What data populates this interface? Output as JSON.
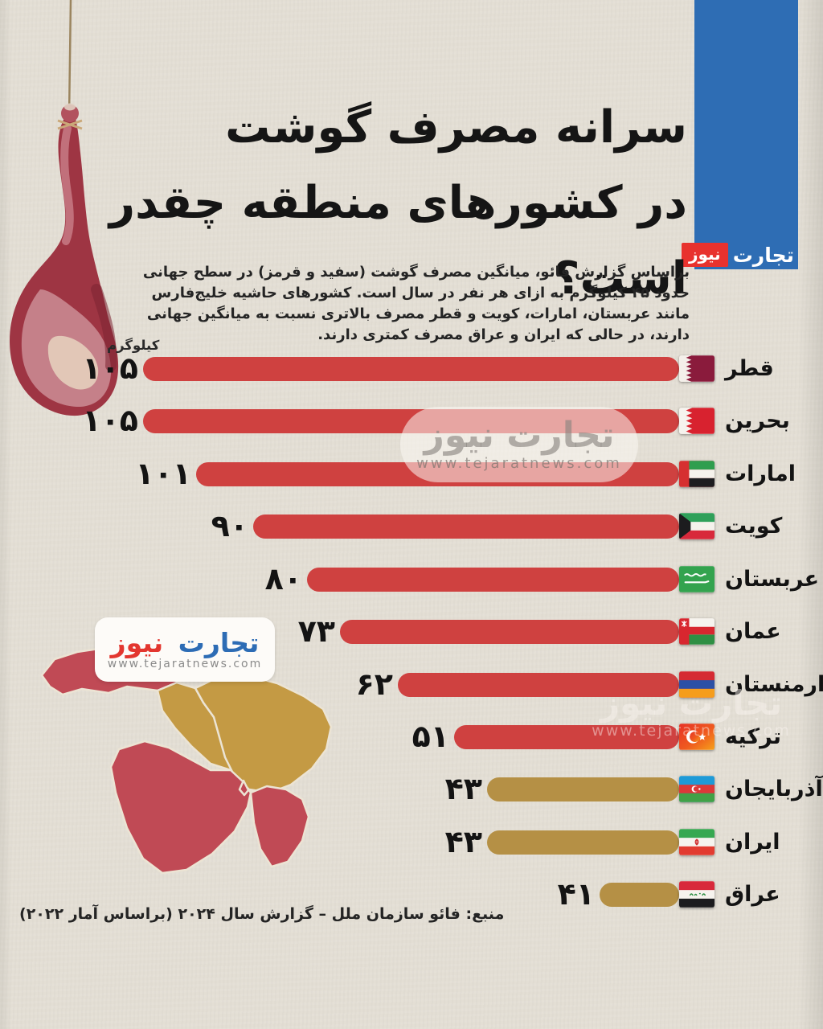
{
  "brand_badge": {
    "word_trade": "تجارت",
    "word_news": "نیوز"
  },
  "title": {
    "line1": "سرانه مصرف گوشت",
    "line2": "در کشورهای منطقه چقدر است؟"
  },
  "intro": "براساس گزارش فائو، میانگین مصرف گوشت (سفید و قرمز) در سطح جهانی حدود ۴۵ کیلوگرم به ازای هر نفر در سال است. کشورهای حاشیه خلیج‌فارس مانند عربستان، امارات، کویت و قطر مصرف بالاتری نسبت به میانگین جهانی دارند، در حالی که ایران و عراق مصرف کمتری دارند.",
  "unit_label": "کیلوگرم",
  "chart_data": {
    "type": "bar",
    "orientation": "horizontal",
    "title": "سرانه مصرف گوشت در کشورهای منطقه چقدر است؟",
    "unit": "کیلوگرم",
    "categories": [
      "قطر",
      "بحرین",
      "امارات",
      "کویت",
      "عربستان",
      "عمان",
      "ارمنستان",
      "ترکیه",
      "آذربایجان",
      "ایران",
      "عراق"
    ],
    "values": [
      105,
      105,
      101,
      90,
      80,
      73,
      62,
      51,
      43,
      43,
      41
    ],
    "values_fa": [
      "۱۰۵",
      "۱۰۵",
      "۱۰۱",
      "۹۰",
      "۸۰",
      "۷۳",
      "۶۲",
      "۵۱",
      "۴۳",
      "۴۳",
      "۴۱"
    ],
    "bar_colors": [
      "#cf4140",
      "#cf4140",
      "#cf4140",
      "#cf4140",
      "#cf4140",
      "#cf4140",
      "#cf4140",
      "#cf4140",
      "#b59045",
      "#b59045",
      "#b59045"
    ],
    "flags": [
      "qatar",
      "bahrain",
      "uae",
      "kuwait",
      "saudi",
      "oman",
      "armenia",
      "turkey",
      "azerbaijan",
      "iran",
      "iraq"
    ],
    "xlim": [
      0,
      105
    ],
    "legend": "none",
    "grid": false
  },
  "watermark_center": {
    "brand": "تجارت نیوز",
    "url": "www.tejaratnews.com"
  },
  "watermark_right": {
    "brand": "تجارت نیوز",
    "url": "www.tejaratnews.com"
  },
  "logo_card": {
    "brand_trade": "تجارت",
    "brand_news": "نیوز",
    "url": "www.tejaratnews.com"
  },
  "source": "منبع: فائو سازمان ملل – گزارش سال ۲۰۲۴ (براساس آمار ۲۰۲۲)",
  "colors": {
    "background": "#e3ded4",
    "bar_red": "#cf4140",
    "bar_gold": "#b59045",
    "map_red": "#c04a55",
    "map_gold": "#c49a44",
    "brand_blue": "#2e6db4",
    "brand_red": "#e8322e",
    "text_dark": "#151515"
  }
}
